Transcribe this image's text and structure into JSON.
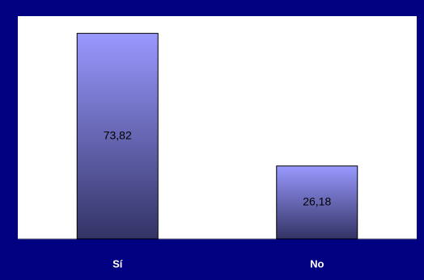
{
  "chart_data": {
    "type": "bar",
    "categories": [
      "Sí",
      "No"
    ],
    "values": [
      73.82,
      26.18
    ],
    "data_labels": [
      "73,82",
      "26,18"
    ],
    "ylim": [
      0,
      80
    ],
    "grid": false,
    "legend": "none",
    "colors": {
      "frame": "#000080",
      "plot_background": "#ffffff",
      "bar_top": "#9999ff",
      "bar_bottom": "#333366",
      "bar_border": "#000000",
      "category_text": "#ffffff"
    }
  }
}
